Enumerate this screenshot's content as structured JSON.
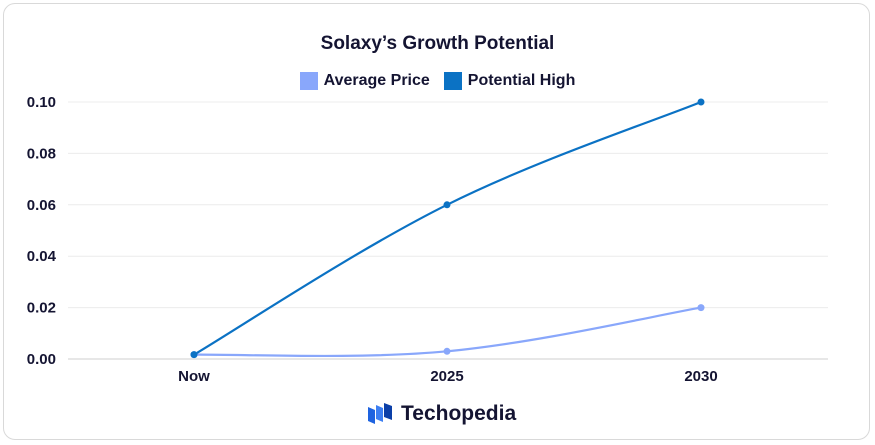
{
  "chart_data": {
    "type": "line",
    "title": "Solaxy’s Growth Potential",
    "categories": [
      "Now",
      "2025",
      "2030"
    ],
    "series": [
      {
        "name": "Average Price",
        "values": [
          0.0017,
          0.003,
          0.02
        ],
        "color": "#89a7fb"
      },
      {
        "name": "Potential High",
        "values": [
          0.0017,
          0.06,
          0.1
        ],
        "color": "#0b72c4"
      }
    ],
    "ylim": [
      0,
      0.1
    ],
    "yticks": [
      "0.00",
      "0.02",
      "0.04",
      "0.06",
      "0.08",
      "0.10"
    ],
    "grid": true,
    "legend": "top-center"
  },
  "brand": {
    "name": "Techopedia",
    "icon": "techopedia-logo-icon",
    "color": "#1e63e0"
  }
}
